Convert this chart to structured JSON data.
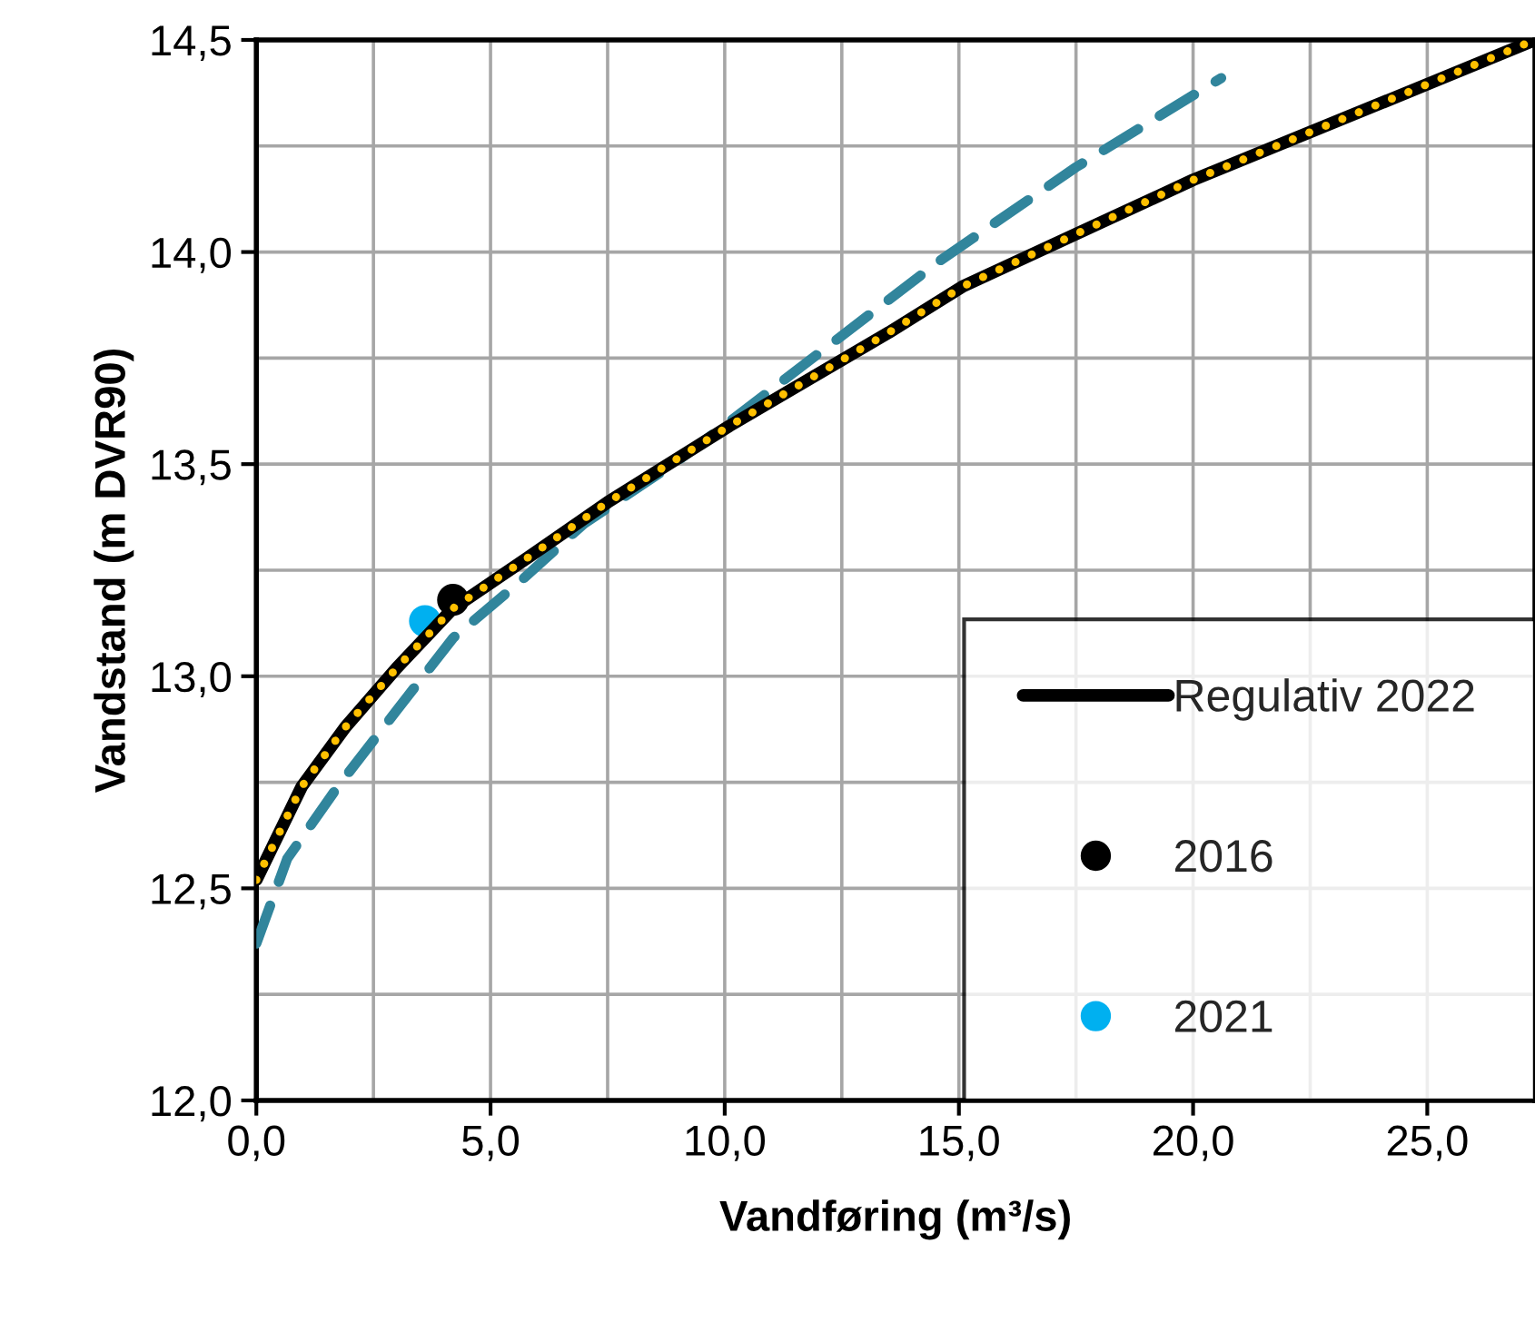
{
  "chart_data": {
    "type": "line",
    "xlabel": "Vandføring (m³/s)",
    "ylabel": "Vandstand (m DVR90)",
    "xlim": [
      0,
      27.3
    ],
    "ylim": [
      12.0,
      14.5
    ],
    "xticks": [
      {
        "value": 0,
        "label": "0,0"
      },
      {
        "value": 2.5,
        "label": null
      },
      {
        "value": 5,
        "label": "5,0"
      },
      {
        "value": 7.5,
        "label": null
      },
      {
        "value": 10,
        "label": "10,0"
      },
      {
        "value": 12.5,
        "label": null
      },
      {
        "value": 15,
        "label": "15,0"
      },
      {
        "value": 17.5,
        "label": null
      },
      {
        "value": 20,
        "label": "20,0"
      },
      {
        "value": 22.5,
        "label": null
      },
      {
        "value": 25,
        "label": "25,0"
      }
    ],
    "yticks": [
      {
        "value": 12.0,
        "label": "12,0"
      },
      {
        "value": 12.25,
        "label": null
      },
      {
        "value": 12.5,
        "label": "12,5"
      },
      {
        "value": 12.75,
        "label": null
      },
      {
        "value": 13.0,
        "label": "13,0"
      },
      {
        "value": 13.25,
        "label": null
      },
      {
        "value": 13.5,
        "label": "13,5"
      },
      {
        "value": 13.75,
        "label": null
      },
      {
        "value": 14.0,
        "label": "14,0"
      },
      {
        "value": 14.25,
        "label": null
      },
      {
        "value": 14.5,
        "label": "14,5"
      }
    ],
    "grid": true,
    "legend": "bottom right",
    "series": [
      {
        "color": "#31859c",
        "line_style": "dashed",
        "x": [
          0,
          0.66,
          1.74,
          3.0,
          4.2,
          5.6,
          7.0,
          8.9,
          10.1,
          14.6,
          17.5,
          20.6
        ],
        "values": [
          12.37,
          12.57,
          12.74,
          12.92,
          13.09,
          13.22,
          13.36,
          13.5,
          13.6,
          13.98,
          14.2,
          14.41
        ]
      },
      {
        "name": "Regulativ 2022",
        "color": "#000000",
        "line_style": "solid",
        "x": [
          0,
          0.97,
          1.9,
          3.0,
          4.2,
          5.8,
          7.5,
          10.1,
          13.5,
          15.1,
          20.0,
          25.1,
          27.3
        ],
        "values": [
          12.52,
          12.74,
          12.88,
          13.02,
          13.16,
          13.28,
          13.41,
          13.59,
          13.81,
          13.92,
          14.17,
          14.4,
          14.5
        ]
      },
      {
        "color": "#ffc000",
        "line_style": "dotted",
        "x": [
          0,
          0.97,
          1.9,
          3.0,
          4.2,
          5.8,
          7.5,
          10.1,
          13.5,
          15.1,
          20.0,
          25.1,
          27.3
        ],
        "values": [
          12.52,
          12.74,
          12.88,
          13.02,
          13.16,
          13.28,
          13.41,
          13.59,
          13.81,
          13.92,
          14.17,
          14.4,
          14.5
        ]
      },
      {
        "type": "scatter",
        "name": "2016",
        "color": "#000000",
        "marker": "circle",
        "x": [
          4.2
        ],
        "values": [
          13.18
        ]
      },
      {
        "type": "scatter",
        "name": "2021",
        "color": "#00b0f0",
        "marker": "circle",
        "x": [
          3.6
        ],
        "values": [
          13.13
        ]
      }
    ]
  }
}
